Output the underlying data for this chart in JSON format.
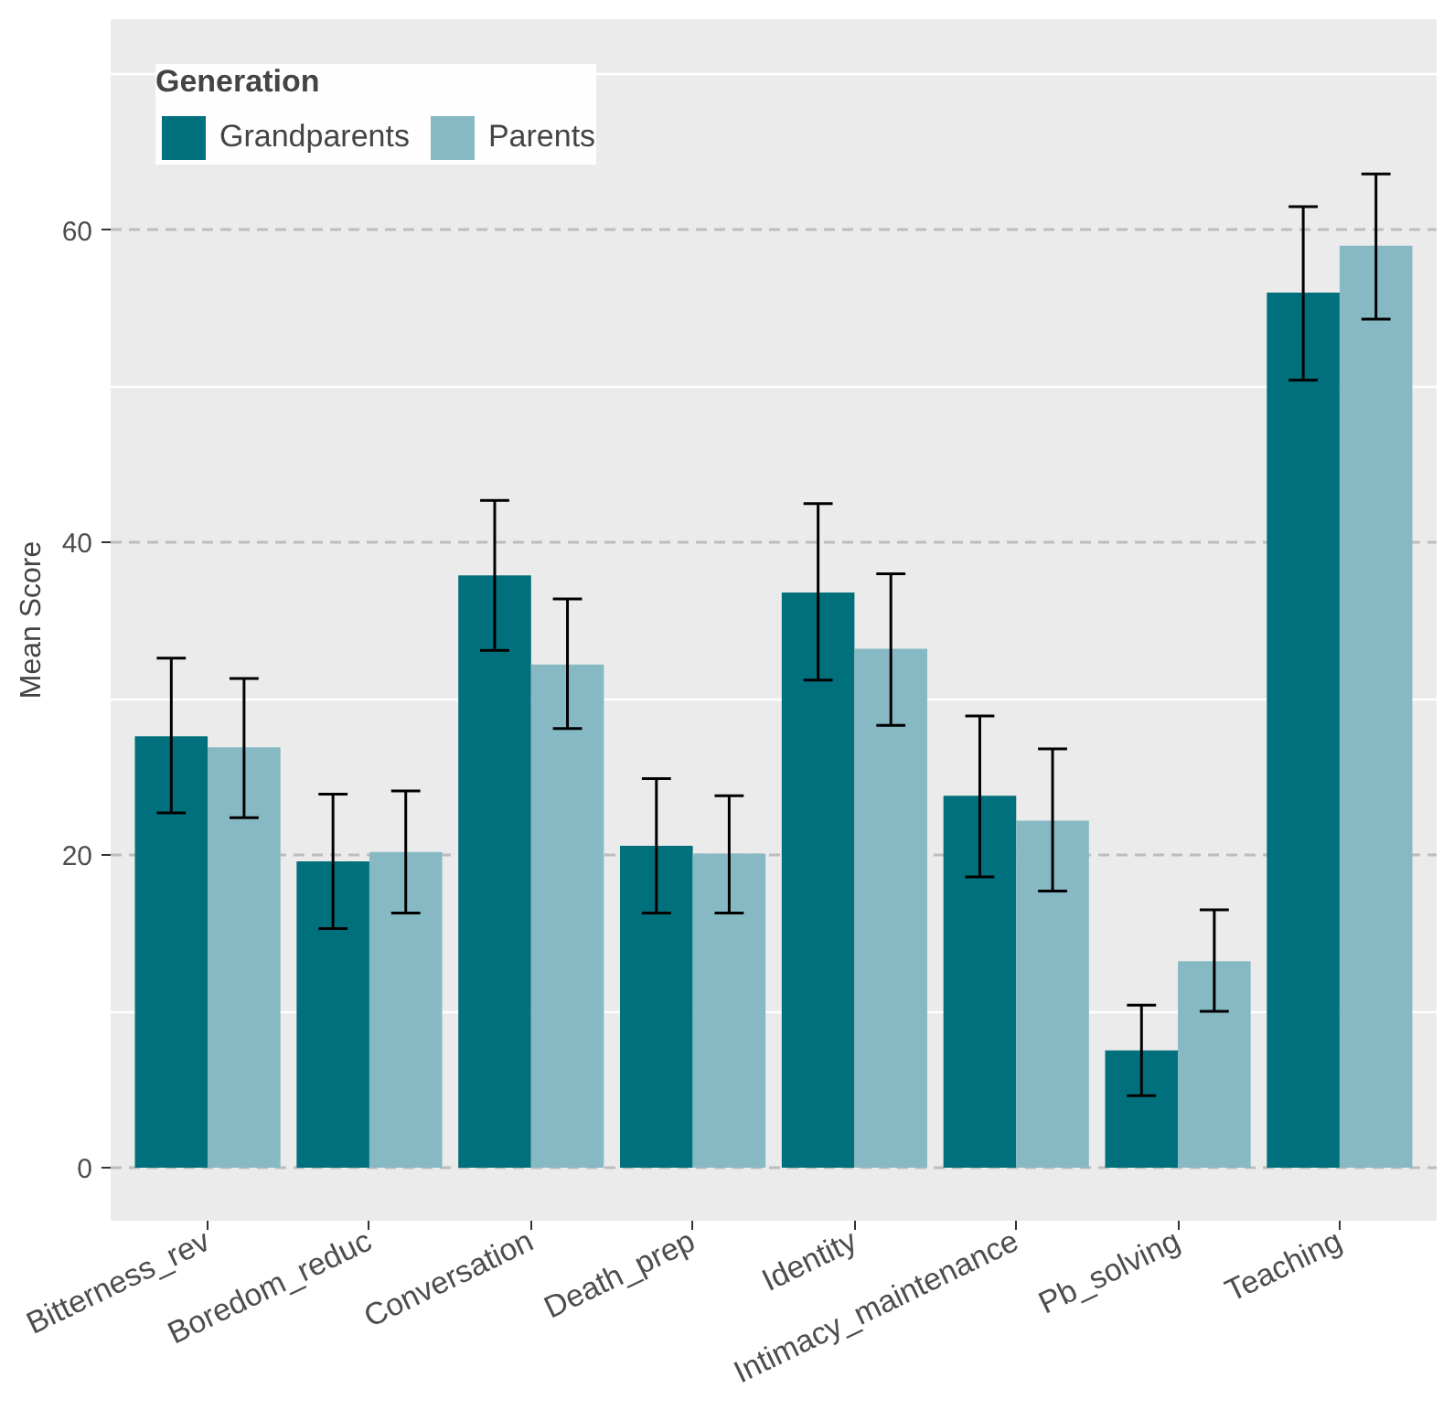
{
  "chart_data": {
    "type": "bar",
    "ylabel": "Mean Score",
    "legend_title": "Generation",
    "categories": [
      "Bitterness_rev",
      "Boredom_reduc",
      "Conversation",
      "Death_prep",
      "Identity",
      "Intimacy_maintenance",
      "Pb_solving",
      "Teaching"
    ],
    "series": [
      {
        "name": "Grandparents",
        "color": "#00707c",
        "values": [
          27.6,
          19.6,
          37.9,
          20.6,
          36.8,
          23.8,
          7.5,
          56.0
        ],
        "errors": [
          [
            22.7,
            32.6
          ],
          [
            15.3,
            23.9
          ],
          [
            33.1,
            42.7
          ],
          [
            16.3,
            24.9
          ],
          [
            31.2,
            42.5
          ],
          [
            18.6,
            28.9
          ],
          [
            4.6,
            10.4
          ],
          [
            50.4,
            61.5
          ]
        ]
      },
      {
        "name": "Parents",
        "color": "#86b9c3",
        "values": [
          26.9,
          20.2,
          32.2,
          20.1,
          33.2,
          22.2,
          13.2,
          59.0
        ],
        "errors": [
          [
            22.4,
            31.3
          ],
          [
            16.3,
            24.1
          ],
          [
            28.1,
            36.4
          ],
          [
            16.3,
            23.8
          ],
          [
            28.3,
            38.0
          ],
          [
            17.7,
            26.8
          ],
          [
            10.0,
            16.5
          ],
          [
            54.3,
            63.6
          ]
        ]
      }
    ],
    "ylim": [
      -3.4,
      73.5
    ],
    "yticks": [
      0,
      20,
      40,
      60
    ],
    "grid": "y",
    "legend": "top left"
  }
}
